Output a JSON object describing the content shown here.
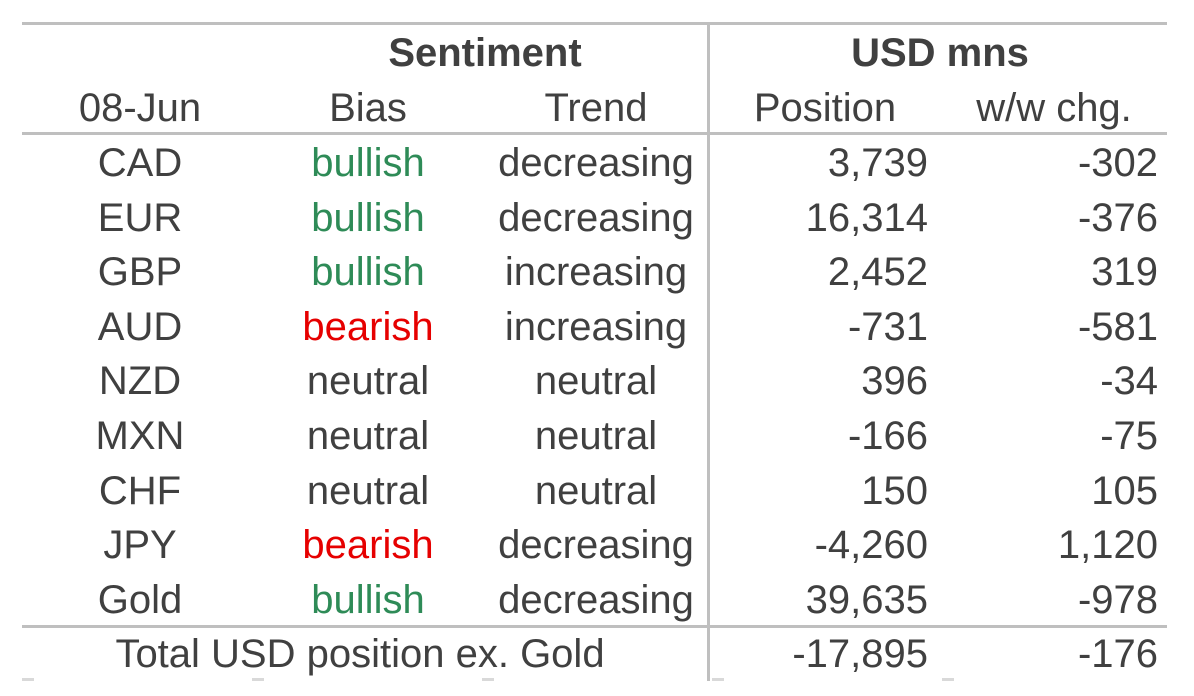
{
  "header": {
    "sentiment": "Sentiment",
    "usd_mns": "USD mns",
    "date": "08-Jun",
    "bias": "Bias",
    "trend": "Trend",
    "position": "Position",
    "ww_chg": "w/w chg."
  },
  "rows": [
    {
      "currency": "CAD",
      "bias": "bullish",
      "trend": "decreasing",
      "position": "3,739",
      "chg": "-302"
    },
    {
      "currency": "EUR",
      "bias": "bullish",
      "trend": "decreasing",
      "position": "16,314",
      "chg": "-376"
    },
    {
      "currency": "GBP",
      "bias": "bullish",
      "trend": "increasing",
      "position": "2,452",
      "chg": "319"
    },
    {
      "currency": "AUD",
      "bias": "bearish",
      "trend": "increasing",
      "position": "-731",
      "chg": "-581"
    },
    {
      "currency": "NZD",
      "bias": "neutral",
      "trend": "neutral",
      "position": "396",
      "chg": "-34"
    },
    {
      "currency": "MXN",
      "bias": "neutral",
      "trend": "neutral",
      "position": "-166",
      "chg": "-75"
    },
    {
      "currency": "CHF",
      "bias": "neutral",
      "trend": "neutral",
      "position": "150",
      "chg": "105"
    },
    {
      "currency": "JPY",
      "bias": "bearish",
      "trend": "decreasing",
      "position": "-4,260",
      "chg": "1,120"
    },
    {
      "currency": "Gold",
      "bias": "bullish",
      "trend": "decreasing",
      "position": "39,635",
      "chg": "-978"
    }
  ],
  "total": {
    "label": "Total USD position ex. Gold",
    "position": "-17,895",
    "chg": "-176"
  },
  "colors": {
    "bullish": "#2e8b57",
    "bearish": "#e60000",
    "neutral": "#404040",
    "rule": "#bfbfbf"
  }
}
